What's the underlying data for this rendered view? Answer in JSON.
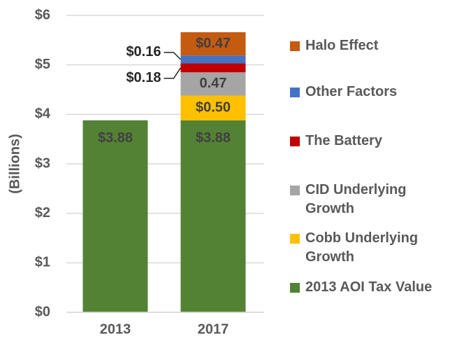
{
  "chart_data": {
    "type": "stacked-bar",
    "y_label": "(Billions)",
    "categories": [
      "2013",
      "2017"
    ],
    "ylim": [
      0,
      6
    ],
    "yticks": [
      {
        "value": 0,
        "label": "$0"
      },
      {
        "value": 1,
        "label": "$1"
      },
      {
        "value": 2,
        "label": "$2"
      },
      {
        "value": 3,
        "label": "$3"
      },
      {
        "value": 4,
        "label": "$4"
      },
      {
        "value": 5,
        "label": "$5"
      },
      {
        "value": 6,
        "label": "$6"
      }
    ],
    "grid": true,
    "series": [
      {
        "name": "2013 AOI Tax Value",
        "color": "#548235",
        "values": [
          3.88,
          3.88
        ],
        "value_labels": [
          "$3.88",
          "$3.88"
        ]
      },
      {
        "name": "Cobb Underlying Growth",
        "color": "#ffc000",
        "values": [
          null,
          0.5
        ],
        "value_labels": [
          null,
          "$0.50"
        ]
      },
      {
        "name": "CID Underlying Growth",
        "color": "#a5a5a5",
        "values": [
          null,
          0.47
        ],
        "value_labels": [
          null,
          "0.47"
        ]
      },
      {
        "name": "The Battery",
        "color": "#c00000",
        "values": [
          null,
          0.18
        ],
        "value_labels": [
          null,
          "$0.18"
        ]
      },
      {
        "name": "Other Factors",
        "color": "#4472c4",
        "values": [
          null,
          0.16
        ],
        "value_labels": [
          null,
          "$0.16"
        ]
      },
      {
        "name": "Halo Effect",
        "color": "#c55a11",
        "values": [
          null,
          0.47
        ],
        "value_labels": [
          null,
          "$0.47"
        ]
      }
    ]
  }
}
